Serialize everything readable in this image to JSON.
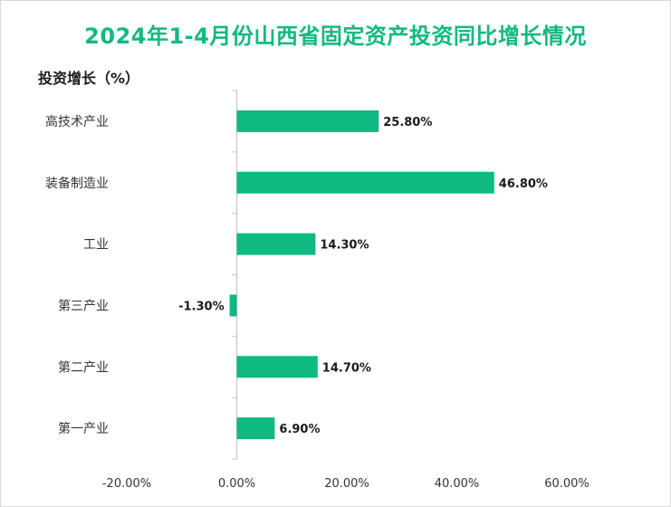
{
  "chart_data": {
    "type": "bar",
    "orientation": "horizontal",
    "title": "2024年1-4月份山西省固定资产投资同比增长情况",
    "xlabel": "",
    "ylabel": "投资增长（%）",
    "categories": [
      "高技术产业",
      "装备制造业",
      "工业",
      "第三产业",
      "第二产业",
      "第一产业"
    ],
    "values": [
      25.8,
      46.8,
      14.3,
      -1.3,
      14.7,
      6.9
    ],
    "value_labels": [
      "25.80%",
      "46.80%",
      "14.30%",
      "-1.30%",
      "14.70%",
      "6.90%"
    ],
    "xlim": [
      -20,
      60
    ],
    "x_ticks": [
      -20,
      0,
      20,
      40,
      60
    ],
    "x_tick_labels": [
      "-20.00%",
      "0.00%",
      "20.00%",
      "40.00%",
      "60.00%"
    ],
    "grid": false,
    "legend": "none"
  },
  "colors": {
    "bar": "#10b981",
    "title": "#10b981",
    "axis": "#bfbfbf"
  }
}
